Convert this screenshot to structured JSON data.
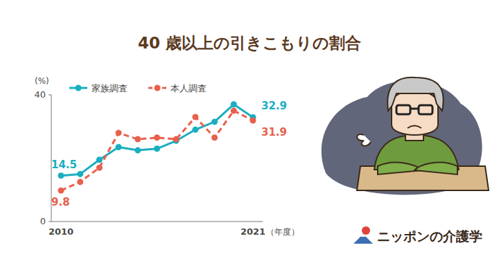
{
  "chart_data": {
    "type": "line",
    "title": "40 歳以上の引きこもりの割合",
    "y_label": "(%)",
    "x_label": "（年度）",
    "categories": [
      "2010",
      null,
      null,
      null,
      null,
      null,
      null,
      null,
      null,
      null,
      "2021"
    ],
    "series": [
      {
        "name": "家族調査",
        "color": "#1aaebf",
        "marker": "circle",
        "line_style": "solid",
        "values": [
          14.5,
          15.0,
          19.5,
          23.5,
          22.5,
          23.0,
          25.5,
          29.0,
          31.5,
          37.0,
          32.9
        ],
        "value_labels": [
          "14.5",
          null,
          null,
          null,
          null,
          null,
          null,
          null,
          null,
          null,
          "32.9"
        ]
      },
      {
        "name": "本人調査",
        "color": "#e8604c",
        "marker": "circle",
        "line_style": "dashed",
        "values": [
          9.8,
          12.5,
          17.0,
          28.0,
          26.0,
          26.5,
          26.0,
          33.0,
          26.5,
          35.0,
          31.9
        ],
        "value_labels": [
          "9.8",
          null,
          null,
          null,
          null,
          null,
          null,
          null,
          null,
          null,
          "31.9"
        ]
      }
    ],
    "ylim": [
      0,
      40
    ],
    "yticks": [
      0,
      40
    ],
    "grid": false,
    "legend": "top",
    "annotations": [
      "ニッポンの介護学"
    ]
  }
}
